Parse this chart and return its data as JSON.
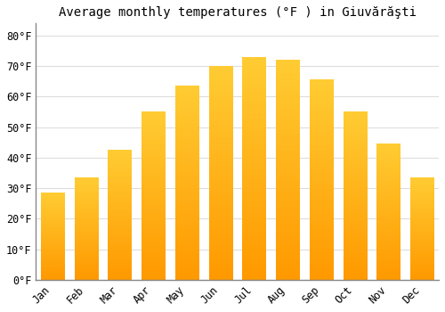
{
  "title": "Average monthly temperatures (°F ) in Giuvărăşti",
  "months": [
    "Jan",
    "Feb",
    "Mar",
    "Apr",
    "May",
    "Jun",
    "Jul",
    "Aug",
    "Sep",
    "Oct",
    "Nov",
    "Dec"
  ],
  "values": [
    28.5,
    33.5,
    42.5,
    55,
    63.5,
    70,
    73,
    72,
    65.5,
    55,
    44.5,
    33.5
  ],
  "bar_color_top": "#FFCC33",
  "bar_color_bottom": "#FF9900",
  "background_color": "#FFFFFF",
  "grid_color": "#DDDDDD",
  "ylim": [
    0,
    84
  ],
  "yticks": [
    0,
    10,
    20,
    30,
    40,
    50,
    60,
    70,
    80
  ],
  "tick_label_suffix": "°F",
  "title_fontsize": 10,
  "tick_fontsize": 8.5,
  "bar_width": 0.7
}
